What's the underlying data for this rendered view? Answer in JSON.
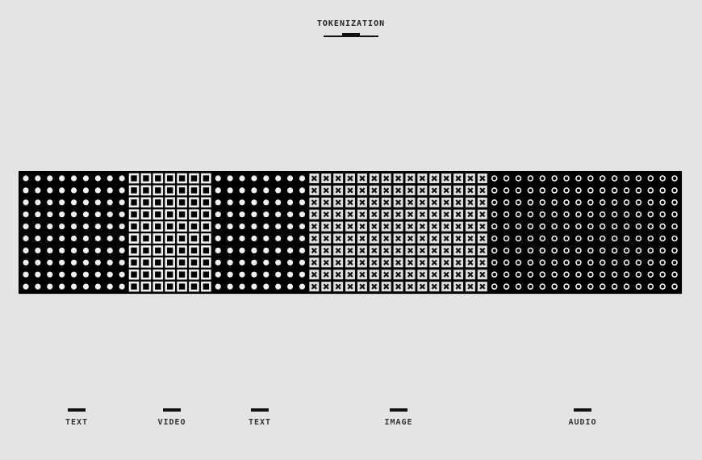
{
  "title": "TOKENIZATION",
  "colors": {
    "background": "#e4e4e4",
    "panel": "#000000",
    "token_light": "#f0f0f0",
    "token_dark": "#111111"
  },
  "rows": 10,
  "segments": [
    {
      "label": "TEXT",
      "token_icon": "dot",
      "columns": 9
    },
    {
      "label": "VIDEO",
      "token_icon": "square-outline",
      "columns": 7
    },
    {
      "label": "TEXT",
      "token_icon": "dot",
      "columns": 8
    },
    {
      "label": "IMAGE",
      "token_icon": "x-box",
      "columns": 15
    },
    {
      "label": "AUDIO",
      "token_icon": "ring",
      "columns": 16
    }
  ]
}
